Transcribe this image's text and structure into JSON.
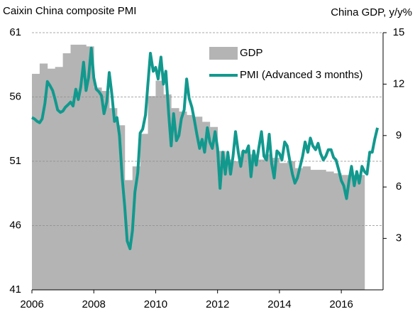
{
  "chart_data": {
    "type": "combo",
    "title": "Caixin China composite PMI",
    "y2_title": "China GDP, y/y%",
    "xlim": [
      2006,
      2017.35
    ],
    "xticks": [
      2006,
      2008,
      2010,
      2012,
      2014,
      2016
    ],
    "ylim": [
      41,
      61
    ],
    "yticks": [
      41,
      46,
      51,
      56,
      61
    ],
    "y2lim": [
      0,
      15
    ],
    "y2ticks": [
      3,
      6,
      9,
      12,
      15
    ],
    "grid": true,
    "legend": "upper-right",
    "series": [
      {
        "name": "GDP",
        "type": "step-area",
        "axis": "y2",
        "color": "#b4b4b4",
        "x": [
          2006,
          2006.25,
          2006.5,
          2006.75,
          2007,
          2007.25,
          2007.5,
          2007.75,
          2008,
          2008.25,
          2008.5,
          2008.75,
          2009,
          2009.25,
          2009.5,
          2009.75,
          2010,
          2010.25,
          2010.5,
          2010.75,
          2011,
          2011.25,
          2011.5,
          2011.75,
          2012,
          2012.25,
          2012.5,
          2012.75,
          2013,
          2013.25,
          2013.5,
          2013.75,
          2014,
          2014.25,
          2014.5,
          2014.75,
          2015,
          2015.25,
          2015.5,
          2015.75,
          2016,
          2016.25,
          2016.5
        ],
        "values": [
          12.6,
          13.2,
          12.9,
          13.0,
          13.8,
          14.3,
          14.3,
          14.2,
          11.8,
          11.6,
          10.6,
          9.6,
          6.4,
          7.2,
          9.1,
          11.3,
          12.2,
          11.4,
          10.6,
          10.4,
          10.2,
          10.1,
          9.8,
          9.5,
          8.1,
          7.6,
          7.5,
          8.1,
          7.9,
          7.6,
          7.9,
          7.7,
          7.4,
          7.5,
          7.1,
          7.2,
          7.0,
          7.0,
          6.9,
          6.8,
          6.7,
          6.7,
          6.7
        ]
      },
      {
        "name": "PMI (Advanced 3 months)",
        "type": "line",
        "axis": "y",
        "color": "#12998e",
        "x": [
          2006,
          2006.08,
          2006.17,
          2006.25,
          2006.33,
          2006.42,
          2006.5,
          2006.58,
          2006.67,
          2006.75,
          2006.83,
          2006.92,
          2007,
          2007.08,
          2007.17,
          2007.25,
          2007.33,
          2007.42,
          2007.5,
          2007.58,
          2007.67,
          2007.75,
          2007.83,
          2007.92,
          2008,
          2008.08,
          2008.17,
          2008.25,
          2008.33,
          2008.42,
          2008.5,
          2008.58,
          2008.67,
          2008.75,
          2008.83,
          2008.92,
          2009,
          2009.08,
          2009.17,
          2009.25,
          2009.33,
          2009.42,
          2009.5,
          2009.58,
          2009.67,
          2009.75,
          2009.83,
          2009.92,
          2010,
          2010.08,
          2010.17,
          2010.25,
          2010.33,
          2010.42,
          2010.5,
          2010.58,
          2010.67,
          2010.75,
          2010.83,
          2010.92,
          2011,
          2011.08,
          2011.17,
          2011.25,
          2011.33,
          2011.42,
          2011.5,
          2011.58,
          2011.67,
          2011.75,
          2011.83,
          2011.92,
          2012,
          2012.08,
          2012.17,
          2012.25,
          2012.33,
          2012.42,
          2012.5,
          2012.58,
          2012.67,
          2012.75,
          2012.83,
          2012.92,
          2013,
          2013.08,
          2013.17,
          2013.25,
          2013.33,
          2013.42,
          2013.5,
          2013.58,
          2013.67,
          2013.75,
          2013.83,
          2013.92,
          2014,
          2014.08,
          2014.17,
          2014.25,
          2014.33,
          2014.42,
          2014.5,
          2014.58,
          2014.67,
          2014.75,
          2014.83,
          2014.92,
          2015,
          2015.08,
          2015.17,
          2015.25,
          2015.33,
          2015.42,
          2015.5,
          2015.58,
          2015.67,
          2015.75,
          2015.83,
          2015.92,
          2016,
          2016.08,
          2016.17,
          2016.25,
          2016.33,
          2016.42,
          2016.5,
          2016.58,
          2016.67,
          2016.75,
          2016.83,
          2016.92,
          2017,
          2017.08,
          2017.17
        ],
        "values": [
          54.4,
          54.3,
          54.1,
          54.0,
          54.3,
          55.5,
          57.2,
          56.9,
          56.5,
          55.8,
          55.0,
          54.8,
          54.9,
          55.2,
          55.4,
          55.6,
          55.3,
          56.6,
          55.8,
          56.8,
          58.7,
          56.5,
          57.5,
          59.8,
          57.5,
          56.6,
          56.4,
          56.1,
          54.7,
          55.6,
          57.9,
          56.3,
          54.1,
          54.4,
          53.0,
          49.7,
          47.5,
          44.8,
          44.2,
          45.6,
          48.6,
          50.1,
          53.2,
          53.5,
          54.6,
          57.0,
          59.4,
          58.0,
          58.3,
          57.4,
          59.1,
          57.0,
          58.0,
          54.7,
          52.2,
          54.7,
          52.6,
          53.0,
          54.3,
          55.0,
          57.4,
          55.9,
          55.2,
          54.2,
          53.1,
          52.0,
          52.7,
          51.7,
          53.6,
          52.5,
          52.0,
          53.3,
          52.0,
          48.9,
          51.7,
          50.0,
          51.7,
          50.0,
          51.4,
          53.3,
          51.7,
          50.6,
          51.8,
          51.7,
          52.2,
          49.8,
          51.8,
          50.7,
          52.0,
          53.3,
          51.4,
          51.1,
          53.1,
          50.8,
          49.7,
          51.8,
          51.6,
          51.1,
          52.5,
          52.2,
          51.1,
          50.0,
          49.3,
          49.7,
          50.6,
          51.4,
          52.5,
          51.7,
          52.8,
          52.2,
          51.9,
          52.4,
          51.6,
          51.1,
          51.4,
          51.9,
          51.9,
          51.3,
          51.1,
          50.3,
          49.5,
          49.1,
          48.1,
          49.5,
          50.6,
          49.1,
          50.2,
          49.3,
          50.6,
          50.2,
          50.0,
          51.7,
          51.7,
          52.7,
          53.6
        ]
      }
    ]
  }
}
